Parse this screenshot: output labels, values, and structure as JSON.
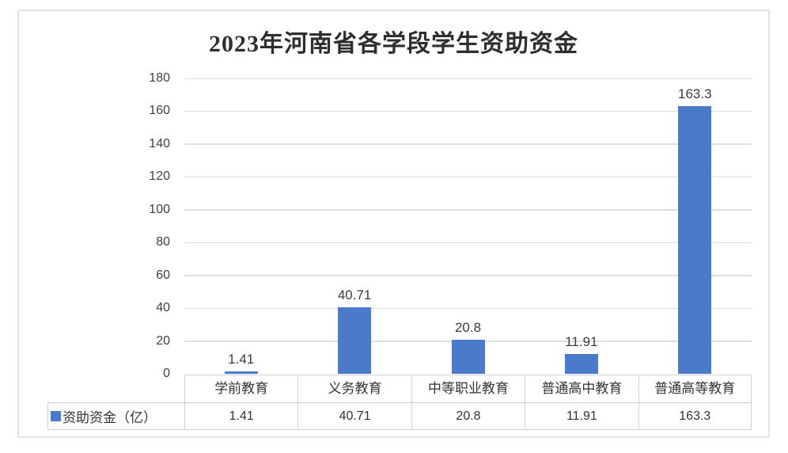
{
  "title": "2023年河南省各学段学生资助资金",
  "chart_data": {
    "type": "bar",
    "title": "2023年河南省各学段学生资助资金",
    "categories": [
      "学前教育",
      "义务教育",
      "中等职业教育",
      "普通高中教育",
      "普通高等教育"
    ],
    "series": [
      {
        "name": "资助资金（亿）",
        "values": [
          1.41,
          40.71,
          20.8,
          11.91,
          163.3
        ],
        "labels": [
          "1.41",
          "40.71",
          "20.8",
          "11.91",
          "163.3"
        ],
        "color": "#4A7AC9"
      }
    ],
    "ylim": [
      0,
      180
    ],
    "yticks": [
      0,
      20,
      40,
      60,
      80,
      100,
      120,
      140,
      160,
      180
    ],
    "grid": true,
    "legend_position": "data-table-left",
    "colors": {
      "bar": "#4A7AC9",
      "gridline": "#DEDEDE",
      "table_border": "#D1D1D1",
      "label_text": "#3b3b3b"
    }
  }
}
